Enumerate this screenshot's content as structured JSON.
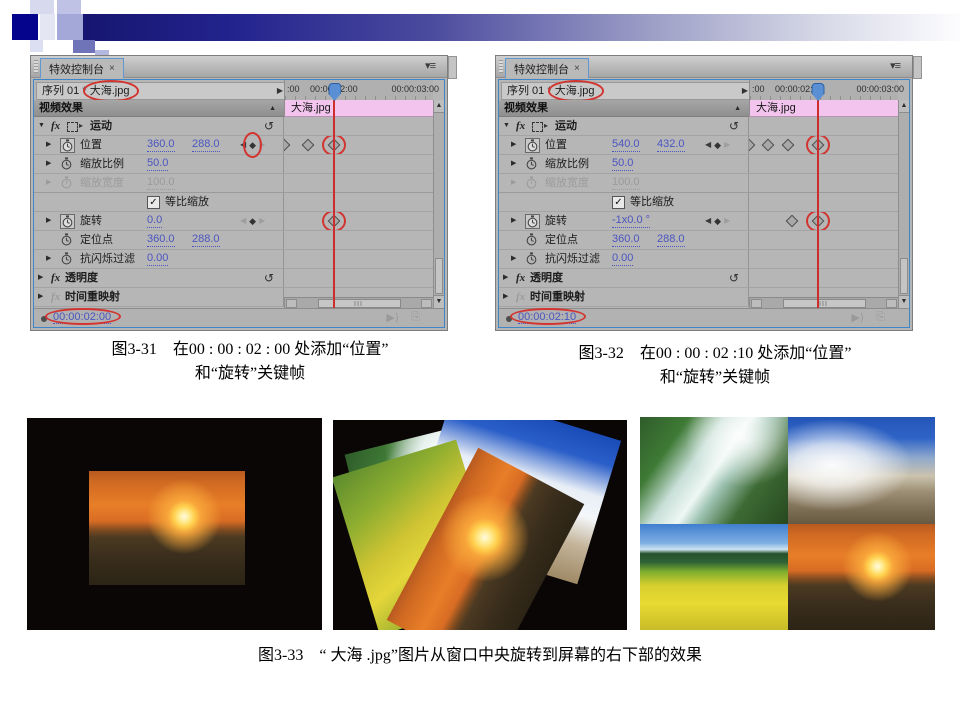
{
  "colors": {
    "annotation": "#d23430",
    "value_blue": "#4a55c0",
    "clip_pink": "#f2c4ee",
    "playhead_blue": "#5b8fd4",
    "panel_border_blue": "#3f86c8"
  },
  "icons": {
    "tab_close": "×",
    "panel_menu": "▾≡",
    "collapsed_tri": "▶",
    "expanded_tri": "▼",
    "fx": "fx",
    "small_tri": "▸",
    "reset": "↺",
    "prev_kf": "◀",
    "add_kf": "◆",
    "next_kf": "▶",
    "check": "✓",
    "scroll_up": "▲",
    "scroll_down": "▼",
    "collapse_up": "▲",
    "seq_arrow": "▶",
    "play": "▶⟩",
    "export": "⎘"
  },
  "panels": [
    {
      "tab": "特效控制台",
      "seq_prefix": "序列 01 *",
      "seq_name": "大海.jpg",
      "ruler_labels": [
        ":00",
        "00:00:02:00",
        "00:00:03:00"
      ],
      "clip_name": "大海.jpg",
      "effects_header": "视频效果",
      "playhead_pct": 33.5,
      "timecode": "00:00:02:00",
      "rows": {
        "motion": {
          "label": "运动"
        },
        "position": {
          "label": "位置",
          "x": "360.0",
          "y": "288.0",
          "nav_circled": true,
          "prev_dim": false,
          "keyframes": [
            {
              "pct": 0
            },
            {
              "pct": 16
            },
            {
              "pct": 33.5,
              "circled": true
            }
          ]
        },
        "scale": {
          "label": "缩放比例",
          "value": "50.0"
        },
        "scale_width": {
          "label": "缩放宽度",
          "value": "100.0"
        },
        "uniform_scale": {
          "label": "等比缩放",
          "checked": true
        },
        "rotation": {
          "label": "旋转",
          "value": "0.0",
          "nav_circled": false,
          "prev_dim": true,
          "keyframes": [
            {
              "pct": 33.5,
              "circled": true
            }
          ]
        },
        "anchor": {
          "label": "定位点",
          "x": "360.0",
          "y": "288.0"
        },
        "antiflicker": {
          "label": "抗闪烁过滤",
          "value": "0.00"
        },
        "opacity": {
          "label": "透明度"
        },
        "time_remap": {
          "label": "时间重映射"
        }
      }
    },
    {
      "tab": "特效控制台",
      "seq_prefix": "序列 01 *",
      "seq_name": "大海.jpg",
      "ruler_labels": [
        ":00",
        "00:00:02:00",
        "00:00:03:00"
      ],
      "clip_name": "大海.jpg",
      "effects_header": "视频效果",
      "playhead_pct": 46,
      "timecode": "00:00:02:10",
      "rows": {
        "motion": {
          "label": "运动"
        },
        "position": {
          "label": "位置",
          "x": "540.0",
          "y": "432.0",
          "nav_circled": false,
          "prev_dim": false,
          "keyframes": [
            {
              "pct": 0
            },
            {
              "pct": 13
            },
            {
              "pct": 26
            },
            {
              "pct": 46,
              "circled": true
            }
          ]
        },
        "scale": {
          "label": "缩放比例",
          "value": "50.0"
        },
        "scale_width": {
          "label": "缩放宽度",
          "value": "100.0"
        },
        "uniform_scale": {
          "label": "等比缩放",
          "checked": true
        },
        "rotation": {
          "label": "旋转",
          "value": "-1x0.0 °",
          "nav_circled": false,
          "prev_dim": false,
          "keyframes": [
            {
              "pct": 29
            },
            {
              "pct": 46,
              "circled": true
            }
          ]
        },
        "anchor": {
          "label": "定位点",
          "x": "360.0",
          "y": "288.0"
        },
        "antiflicker": {
          "label": "抗闪烁过滤",
          "value": "0.00"
        },
        "opacity": {
          "label": "透明度"
        },
        "time_remap": {
          "label": "时间重映射"
        }
      }
    }
  ],
  "captions": [
    {
      "label": "图3-31",
      "line1": "在00 : 00 : 02 : 00 处添加“位置”",
      "line2": "和“旋转”关键帧"
    },
    {
      "label": "图3-32",
      "line1": "在00 : 00 : 02 :10 处添加“位置”",
      "line2": "和“旋转”关键帧"
    },
    {
      "label": "图3-33",
      "line1": "“ 大海 .jpg”图片从窗口中央旋转到屏幕的右下部的效果",
      "line2": ""
    }
  ]
}
